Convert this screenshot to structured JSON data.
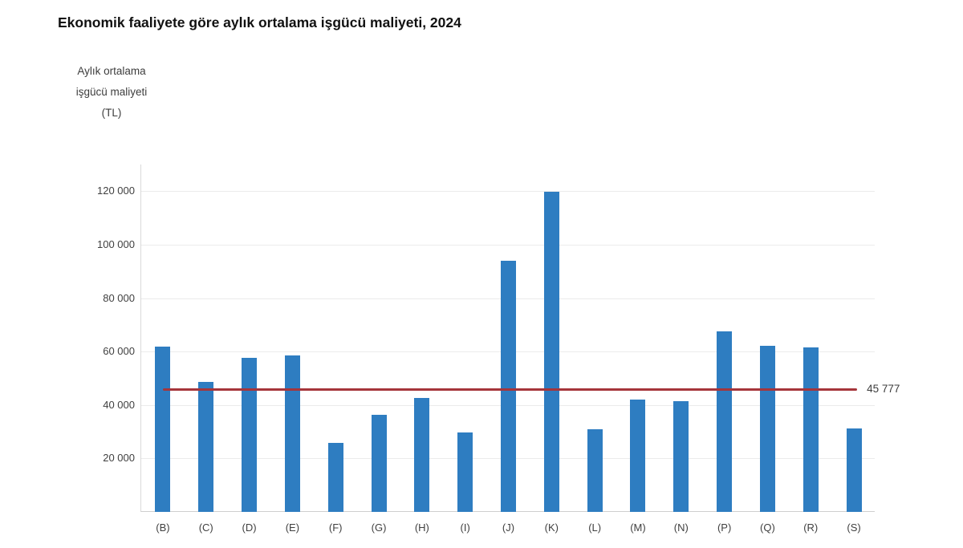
{
  "header": {
    "title": "Ekonomik faaliyete göre aylık ortalama işgücü maliyeti, 2024"
  },
  "y_axis": {
    "lines": [
      "Aylık ortalama",
      "işgücü maliyeti",
      "(TL)"
    ]
  },
  "average_line": {
    "value": 45777,
    "label": "45 777"
  },
  "colors": {
    "bar": "#2e7dc1",
    "average_line": "#a5353b",
    "grid": "#ebebeb",
    "text": "#404040",
    "title": "#111111"
  },
  "chart_data": {
    "type": "bar",
    "title": "Ekonomik faaliyete göre aylık ortalama işgücü maliyeti, 2024",
    "xlabel": "",
    "ylabel": "Aylık ortalama işgücü maliyeti (TL)",
    "categories": [
      "(B)",
      "(C)",
      "(D)",
      "(E)",
      "(F)",
      "(G)",
      "(H)",
      "(I)",
      "(J)",
      "(K)",
      "(L)",
      "(M)",
      "(N)",
      "(P)",
      "(Q)",
      "(R)",
      "(S)"
    ],
    "values": [
      61900,
      48600,
      57700,
      58400,
      25900,
      36400,
      42600,
      29600,
      94000,
      119700,
      30900,
      41900,
      41500,
      67700,
      62200,
      61400,
      31200
    ],
    "ylim": [
      0,
      130000
    ],
    "yticks": [
      20000,
      40000,
      60000,
      80000,
      100000,
      120000
    ],
    "ytick_labels": [
      "20 000",
      "40 000",
      "60 000",
      "80 000",
      "100 000",
      "120 000"
    ],
    "grid": true,
    "legend": false,
    "annotations": [
      {
        "type": "hline",
        "y": 45777,
        "label": "45 777"
      }
    ]
  }
}
